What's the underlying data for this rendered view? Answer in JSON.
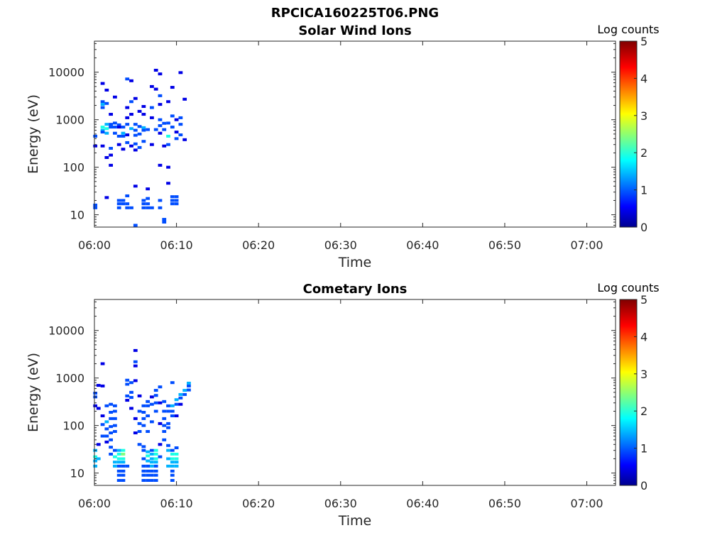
{
  "figure_title": "RPCICA160225T06.PNG",
  "chart_data": [
    {
      "type": "heatmap",
      "title": "Solar Wind Ions",
      "xlabel": "Time",
      "ylabel": "Energy (eV)",
      "colorbar_label": "Log counts",
      "colorbar_ticks": [
        "0",
        "1",
        "2",
        "3",
        "4",
        "5"
      ],
      "clim": [
        0,
        5
      ],
      "x_ticks": [
        "06:00",
        "06:10",
        "06:20",
        "06:30",
        "06:40",
        "06:50",
        "07:00"
      ],
      "x_range_minutes": [
        0,
        63.5
      ],
      "y_scale": "log",
      "y_ticks": [
        "10",
        "100",
        "1000",
        "10000"
      ],
      "y_range": [
        5.5,
        45000
      ],
      "colormap": "jet",
      "cells": [
        [
          0.1,
          14,
          1
        ],
        [
          0.1,
          16,
          1
        ],
        [
          0.1,
          450,
          1
        ],
        [
          0.1,
          280,
          0.5
        ],
        [
          1,
          5800,
          0.5
        ],
        [
          1,
          2400,
          1
        ],
        [
          1,
          2100,
          1.5
        ],
        [
          1,
          1800,
          1
        ],
        [
          1,
          700,
          2
        ],
        [
          1,
          600,
          1.5
        ],
        [
          1,
          550,
          1
        ],
        [
          1,
          280,
          0.5
        ],
        [
          1.5,
          4200,
          0.5
        ],
        [
          1.5,
          2200,
          1
        ],
        [
          1.5,
          800,
          1.5
        ],
        [
          1.5,
          650,
          2
        ],
        [
          1.5,
          520,
          1.5
        ],
        [
          1.5,
          160,
          0.5
        ],
        [
          1.5,
          23,
          0.5
        ],
        [
          2,
          1300,
          0.5
        ],
        [
          2,
          800,
          1
        ],
        [
          2,
          700,
          1
        ],
        [
          2,
          250,
          1
        ],
        [
          2,
          180,
          0.5
        ],
        [
          2,
          110,
          0.5
        ],
        [
          2.5,
          850,
          1
        ],
        [
          2.5,
          700,
          1
        ],
        [
          2.5,
          520,
          1
        ],
        [
          2.5,
          3000,
          0.5
        ],
        [
          3,
          780,
          1
        ],
        [
          3,
          700,
          0.5
        ],
        [
          3,
          450,
          1
        ],
        [
          3,
          300,
          0.5
        ],
        [
          3,
          20,
          1
        ],
        [
          3,
          17,
          1
        ],
        [
          3,
          14,
          1
        ],
        [
          3.5,
          700,
          1
        ],
        [
          3.5,
          520,
          1.5
        ],
        [
          3.5,
          450,
          1
        ],
        [
          3.5,
          240,
          0.5
        ],
        [
          3.5,
          20,
          1
        ],
        [
          3.5,
          17,
          1
        ],
        [
          4,
          7200,
          1
        ],
        [
          4,
          1800,
          0.5
        ],
        [
          4,
          1100,
          0.5
        ],
        [
          4,
          800,
          1
        ],
        [
          4,
          480,
          0.5
        ],
        [
          4,
          330,
          1
        ],
        [
          4,
          25,
          1
        ],
        [
          4,
          17,
          1
        ],
        [
          4,
          14,
          1
        ],
        [
          4.5,
          6600,
          0.5
        ],
        [
          4.5,
          2400,
          1
        ],
        [
          4.5,
          1300,
          0.5
        ],
        [
          4.5,
          650,
          1.5
        ],
        [
          4.5,
          280,
          0.5
        ],
        [
          4.5,
          14,
          1
        ],
        [
          5,
          2800,
          0.5
        ],
        [
          5,
          800,
          1
        ],
        [
          5,
          600,
          1
        ],
        [
          5,
          470,
          1
        ],
        [
          5,
          310,
          1
        ],
        [
          5,
          230,
          0.5
        ],
        [
          5,
          6,
          1
        ],
        [
          5,
          40,
          0.5
        ],
        [
          5.5,
          1500,
          0.5
        ],
        [
          5.5,
          720,
          1
        ],
        [
          5.5,
          500,
          1
        ],
        [
          5.5,
          260,
          1
        ],
        [
          6,
          1900,
          0.5
        ],
        [
          6,
          1300,
          0.5
        ],
        [
          6,
          680,
          1.5
        ],
        [
          6,
          600,
          1
        ],
        [
          6,
          350,
          1
        ],
        [
          6,
          20,
          1
        ],
        [
          6,
          17,
          1
        ],
        [
          6,
          14,
          1
        ],
        [
          6.5,
          620,
          1
        ],
        [
          6.5,
          22,
          1
        ],
        [
          6.5,
          17,
          1
        ],
        [
          6.5,
          14,
          1
        ],
        [
          6.5,
          35,
          0.5
        ],
        [
          7,
          5000,
          0.5
        ],
        [
          7,
          1800,
          1
        ],
        [
          7,
          1100,
          0.5
        ],
        [
          7,
          300,
          0.5
        ],
        [
          7,
          14,
          1
        ],
        [
          7.5,
          11000,
          0.5
        ],
        [
          7.5,
          4400,
          0.5
        ],
        [
          7.5,
          620,
          1
        ],
        [
          8,
          9200,
          0.5
        ],
        [
          8,
          3200,
          1
        ],
        [
          8,
          2100,
          0.5
        ],
        [
          8,
          1000,
          1
        ],
        [
          8,
          750,
          1
        ],
        [
          8,
          520,
          0.5
        ],
        [
          8,
          110,
          0.5
        ],
        [
          8,
          20,
          1
        ],
        [
          8,
          14,
          1
        ],
        [
          8.5,
          840,
          1
        ],
        [
          8.5,
          620,
          1
        ],
        [
          8.5,
          280,
          0.5
        ],
        [
          8.5,
          7,
          1
        ],
        [
          8.5,
          8,
          1
        ],
        [
          9,
          2400,
          0.5
        ],
        [
          9,
          850,
          1
        ],
        [
          9,
          450,
          2
        ],
        [
          9,
          300,
          1
        ],
        [
          9,
          100,
          0.5
        ],
        [
          9,
          46,
          0.5
        ],
        [
          9.5,
          4800,
          0.5
        ],
        [
          9.5,
          1200,
          1
        ],
        [
          9.5,
          700,
          1
        ],
        [
          9.5,
          24,
          1
        ],
        [
          9.5,
          20,
          1
        ],
        [
          9.5,
          17,
          1
        ],
        [
          10,
          1000,
          0.5
        ],
        [
          10,
          550,
          0.5
        ],
        [
          10,
          400,
          1
        ],
        [
          10,
          24,
          1
        ],
        [
          10,
          20,
          1
        ],
        [
          10,
          17,
          1
        ],
        [
          10.5,
          9800,
          0.5
        ],
        [
          10.5,
          1100,
          1
        ],
        [
          10.5,
          800,
          1
        ],
        [
          10.5,
          480,
          1
        ],
        [
          11,
          380,
          0.5
        ],
        [
          11,
          2700,
          0.5
        ]
      ]
    },
    {
      "type": "heatmap",
      "title": "Cometary Ions",
      "xlabel": "Time",
      "ylabel": "Energy (eV)",
      "colorbar_label": "Log counts",
      "colorbar_ticks": [
        "0",
        "1",
        "2",
        "3",
        "4",
        "5"
      ],
      "clim": [
        0,
        5
      ],
      "x_ticks": [
        "06:00",
        "06:10",
        "06:20",
        "06:30",
        "06:40",
        "06:50",
        "07:00"
      ],
      "x_range_minutes": [
        0,
        63.5
      ],
      "y_scale": "log",
      "y_ticks": [
        "10",
        "100",
        "1000",
        "10000"
      ],
      "y_range": [
        5.5,
        45000
      ],
      "colormap": "jet",
      "cells": [
        [
          0.1,
          480,
          1
        ],
        [
          0.1,
          400,
          1
        ],
        [
          0.1,
          260,
          0.5
        ],
        [
          0.1,
          30,
          1.5
        ],
        [
          0.1,
          22,
          2
        ],
        [
          0.1,
          18,
          1.5
        ],
        [
          0.1,
          14,
          1.5
        ],
        [
          0.5,
          700,
          0.5
        ],
        [
          0.5,
          230,
          0.5
        ],
        [
          0.5,
          40,
          0.5
        ],
        [
          0.5,
          20,
          1.5
        ],
        [
          1,
          2000,
          0.5
        ],
        [
          1,
          680,
          0.5
        ],
        [
          1,
          160,
          0.5
        ],
        [
          1,
          105,
          1
        ],
        [
          1,
          60,
          1
        ],
        [
          1.5,
          260,
          1
        ],
        [
          1.5,
          120,
          1.5
        ],
        [
          1.5,
          85,
          1
        ],
        [
          1.5,
          60,
          1
        ],
        [
          1.5,
          45,
          0.5
        ],
        [
          2,
          280,
          1
        ],
        [
          2,
          190,
          1
        ],
        [
          2,
          140,
          1
        ],
        [
          2,
          95,
          1
        ],
        [
          2,
          70,
          1
        ],
        [
          2,
          50,
          1
        ],
        [
          2,
          35,
          1
        ],
        [
          2,
          25,
          1
        ],
        [
          2.5,
          260,
          1
        ],
        [
          2.5,
          200,
          1
        ],
        [
          2.5,
          140,
          1
        ],
        [
          2.5,
          100,
          1
        ],
        [
          2.5,
          75,
          1
        ],
        [
          2.5,
          30,
          1
        ],
        [
          2.5,
          22,
          2
        ],
        [
          2.5,
          17,
          1.5
        ],
        [
          2.5,
          14,
          1.5
        ],
        [
          3,
          30,
          1.5
        ],
        [
          3,
          25,
          2
        ],
        [
          3,
          20,
          2
        ],
        [
          3,
          17,
          1.5
        ],
        [
          3,
          14,
          1
        ],
        [
          3,
          11,
          1
        ],
        [
          3,
          9,
          1
        ],
        [
          3,
          7,
          1
        ],
        [
          3.5,
          30,
          2
        ],
        [
          3.5,
          25,
          2.5
        ],
        [
          3.5,
          20,
          2
        ],
        [
          3.5,
          17,
          1.5
        ],
        [
          3.5,
          14,
          1
        ],
        [
          3.5,
          11,
          1
        ],
        [
          3.5,
          9,
          1
        ],
        [
          3.5,
          7,
          1
        ],
        [
          4,
          900,
          1
        ],
        [
          4,
          740,
          1
        ],
        [
          4,
          420,
          1
        ],
        [
          4,
          340,
          0.5
        ],
        [
          4,
          14,
          1
        ],
        [
          4.5,
          800,
          1
        ],
        [
          4.5,
          500,
          1
        ],
        [
          4.5,
          390,
          1
        ],
        [
          4.5,
          230,
          0.5
        ],
        [
          5,
          3800,
          0.5
        ],
        [
          5,
          2200,
          1
        ],
        [
          5,
          1800,
          0.5
        ],
        [
          5,
          880,
          0.5
        ],
        [
          5,
          140,
          0.5
        ],
        [
          5,
          70,
          0.5
        ],
        [
          5.5,
          420,
          0.5
        ],
        [
          5.5,
          200,
          1
        ],
        [
          5.5,
          110,
          1
        ],
        [
          5.5,
          75,
          1
        ],
        [
          5.5,
          40,
          1
        ],
        [
          6,
          260,
          1
        ],
        [
          6,
          190,
          1
        ],
        [
          6,
          140,
          1
        ],
        [
          6,
          100,
          1
        ],
        [
          6,
          36,
          1
        ],
        [
          6,
          30,
          1
        ],
        [
          6,
          20,
          1
        ],
        [
          6,
          14,
          1
        ],
        [
          6,
          11,
          1
        ],
        [
          6,
          9,
          1
        ],
        [
          6,
          7,
          1
        ],
        [
          6.5,
          320,
          1
        ],
        [
          6.5,
          260,
          1
        ],
        [
          6.5,
          160,
          1
        ],
        [
          6.5,
          75,
          1
        ],
        [
          6.5,
          28,
          1.5
        ],
        [
          6.5,
          23,
          2
        ],
        [
          6.5,
          18,
          1.5
        ],
        [
          6.5,
          14,
          1
        ],
        [
          6.5,
          11,
          1
        ],
        [
          6.5,
          9,
          1
        ],
        [
          6.5,
          7,
          1
        ],
        [
          7,
          400,
          0.5
        ],
        [
          7,
          280,
          1
        ],
        [
          7,
          120,
          1
        ],
        [
          7,
          30,
          1
        ],
        [
          7,
          25,
          1.5
        ],
        [
          7,
          20,
          1.5
        ],
        [
          7,
          17,
          1.5
        ],
        [
          7,
          14,
          1.5
        ],
        [
          7,
          11,
          1
        ],
        [
          7,
          9,
          1
        ],
        [
          7,
          7,
          1
        ],
        [
          7.5,
          550,
          1
        ],
        [
          7.5,
          430,
          1
        ],
        [
          7.5,
          300,
          1
        ],
        [
          7.5,
          200,
          1
        ],
        [
          7.5,
          30,
          2
        ],
        [
          7.5,
          25,
          2
        ],
        [
          7.5,
          20,
          2
        ],
        [
          7.5,
          17,
          1.5
        ],
        [
          7.5,
          14,
          1
        ],
        [
          7.5,
          11,
          1
        ],
        [
          7.5,
          9,
          1
        ],
        [
          7.5,
          7,
          1
        ],
        [
          8,
          650,
          1
        ],
        [
          8,
          300,
          0.5
        ],
        [
          8,
          110,
          0.5
        ],
        [
          8,
          40,
          0.5
        ],
        [
          8,
          22,
          1
        ],
        [
          8.5,
          320,
          1
        ],
        [
          8.5,
          200,
          1
        ],
        [
          8.5,
          140,
          1
        ],
        [
          8.5,
          100,
          1
        ],
        [
          8.5,
          75,
          1
        ],
        [
          8.5,
          50,
          1
        ],
        [
          9,
          260,
          1
        ],
        [
          9,
          200,
          1
        ],
        [
          9,
          110,
          1
        ],
        [
          9,
          90,
          1
        ],
        [
          9,
          38,
          1
        ],
        [
          9,
          30,
          1.5
        ],
        [
          9,
          20,
          1.5
        ],
        [
          9,
          14,
          1.5
        ],
        [
          9.5,
          800,
          1
        ],
        [
          9.5,
          260,
          1.5
        ],
        [
          9.5,
          200,
          1
        ],
        [
          9.5,
          160,
          1
        ],
        [
          9.5,
          30,
          1
        ],
        [
          9.5,
          25,
          2
        ],
        [
          9.5,
          20,
          2
        ],
        [
          9.5,
          17,
          1.5
        ],
        [
          9.5,
          14,
          1.5
        ],
        [
          9.5,
          11,
          1
        ],
        [
          9.5,
          9,
          1
        ],
        [
          9.5,
          7,
          1
        ],
        [
          10,
          350,
          1.5
        ],
        [
          10,
          280,
          1
        ],
        [
          10,
          160,
          0.5
        ],
        [
          10,
          34,
          1
        ],
        [
          10,
          25,
          2
        ],
        [
          10,
          20,
          2
        ],
        [
          10,
          17,
          1.5
        ],
        [
          10,
          14,
          1.5
        ],
        [
          10.5,
          450,
          1.5
        ],
        [
          10.5,
          380,
          1
        ],
        [
          10.5,
          280,
          0.5
        ],
        [
          11,
          550,
          1.5
        ],
        [
          11,
          450,
          1
        ],
        [
          11.5,
          780,
          1.5
        ],
        [
          11.5,
          680,
          1
        ],
        [
          11.5,
          560,
          1
        ]
      ]
    }
  ]
}
